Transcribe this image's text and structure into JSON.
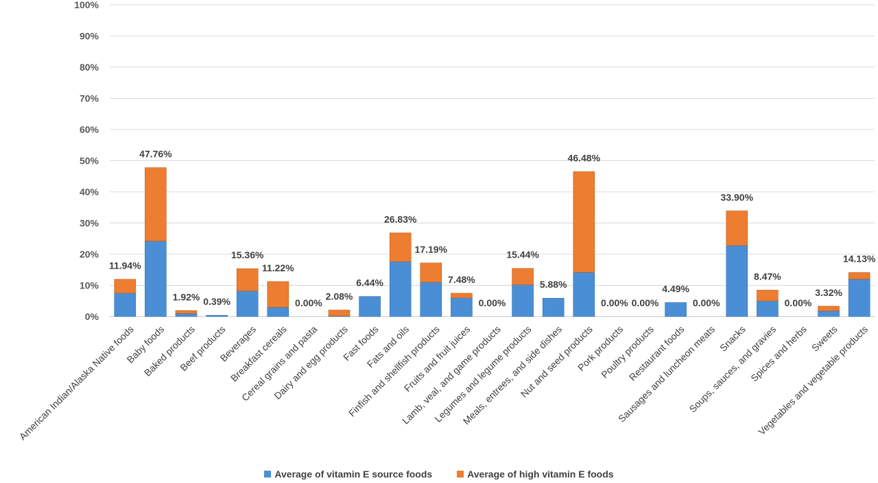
{
  "chart_data": {
    "type": "bar",
    "stacked": true,
    "title": "",
    "xlabel": "",
    "ylabel": "",
    "ylim": [
      0,
      100
    ],
    "y_ticks": [
      "0%",
      "10%",
      "20%",
      "30%",
      "40%",
      "50%",
      "60%",
      "70%",
      "80%",
      "90%",
      "100%"
    ],
    "grid": true,
    "legend_position": "bottom",
    "categories": [
      "American Indian/Alaska Native foods",
      "Baby foods",
      "Baked products",
      "Beef products",
      "Beverages",
      "Breakfast cereals",
      "Cereal grains and pasta",
      "Dairy and egg products",
      "Fast foods",
      "Fats and oils",
      "Finfish and shellfish products",
      "Fruits and fruit juices",
      "Lamb, veal, and game products",
      "Legumes and legume products",
      "Meals, entrees, and side dishes",
      "Nut and seed products",
      "Pork products",
      "Poultry products",
      "Restaurant foods",
      "Sausages and luncheon meats",
      "Snacks",
      "Soups, sauces, and gravies",
      "Spices and herbs",
      "Sweets",
      "Vegetables and vegetable products"
    ],
    "series": [
      {
        "name": "Average of vitamin E source foods",
        "color": "#4a8fd6",
        "values": [
          7.5,
          24.2,
          1.0,
          0.39,
          8.2,
          3.0,
          0,
          0.2,
          6.44,
          17.6,
          11.0,
          6.0,
          0,
          10.2,
          5.88,
          14.2,
          0,
          0,
          4.49,
          0,
          22.8,
          5.0,
          0,
          1.8,
          12.0
        ]
      },
      {
        "name": "Average of high vitamin E foods",
        "color": "#ed7d31",
        "values": [
          4.44,
          23.56,
          0.92,
          0,
          7.16,
          8.22,
          0,
          1.88,
          0,
          9.23,
          6.19,
          1.48,
          0,
          5.24,
          0,
          32.28,
          0,
          0,
          0,
          0,
          11.1,
          3.47,
          0,
          1.52,
          2.13
        ]
      }
    ],
    "data_labels": [
      "11.94%",
      "47.76%",
      "1.92%",
      "0.39%",
      "15.36%",
      "11.22%",
      "0.00%",
      "2.08%",
      "6.44%",
      "26.83%",
      "17.19%",
      "7.48%",
      "0.00%",
      "15.44%",
      "5.88%",
      "46.48%",
      "0.00%",
      "0.00%",
      "4.49%",
      "0.00%",
      "33.90%",
      "8.47%",
      "0.00%",
      "3.32%",
      "14.13%"
    ]
  }
}
